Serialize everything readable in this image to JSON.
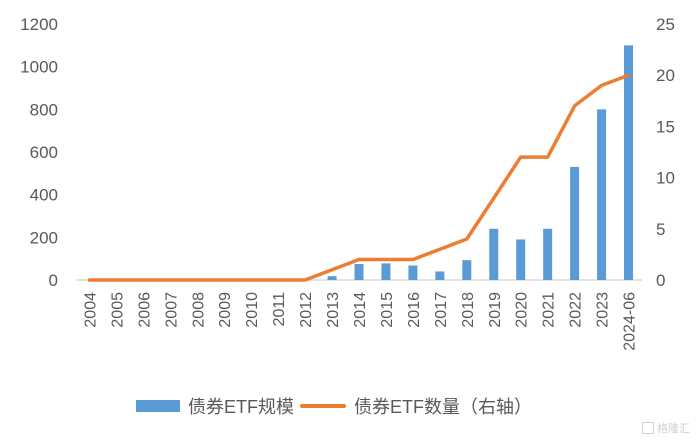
{
  "chart_data": {
    "type": "bar+line",
    "title": "",
    "categories": [
      "2004",
      "2005",
      "2006",
      "2007",
      "2008",
      "2009",
      "2010",
      "2011",
      "2012",
      "2013",
      "2014",
      "2015",
      "2016",
      "2017",
      "2018",
      "2019",
      "2020",
      "2021",
      "2022",
      "2023",
      "2024-06"
    ],
    "series": [
      {
        "name": "债券ETF规模",
        "type": "bar",
        "axis": "left",
        "color": "#5b9bd5",
        "values": [
          0,
          0,
          0,
          0,
          0,
          0,
          0,
          0,
          0,
          18,
          75,
          78,
          68,
          40,
          93,
          240,
          190,
          240,
          530,
          800,
          1100
        ]
      },
      {
        "name": "债券ETF数量（右轴）",
        "type": "line",
        "axis": "right",
        "color": "#ed7d31",
        "values": [
          0,
          0,
          0,
          0,
          0,
          0,
          0,
          0,
          0,
          1,
          2,
          2,
          2,
          3,
          4,
          8,
          12,
          12,
          17,
          19,
          20
        ]
      }
    ],
    "y_left": {
      "ticks": [
        0,
        200,
        400,
        600,
        800,
        1000,
        1200
      ],
      "ylim": [
        0,
        1200
      ],
      "label": ""
    },
    "y_right": {
      "ticks": [
        0,
        5,
        10,
        15,
        20,
        25
      ],
      "ylim": [
        0,
        25
      ],
      "label": ""
    },
    "xlabel": "",
    "grid": false,
    "legend_position": "bottom"
  },
  "legend": {
    "bar_label": "债券ETF规模",
    "line_label": "债券ETF数量（右轴）"
  },
  "watermark": "格隆汇"
}
